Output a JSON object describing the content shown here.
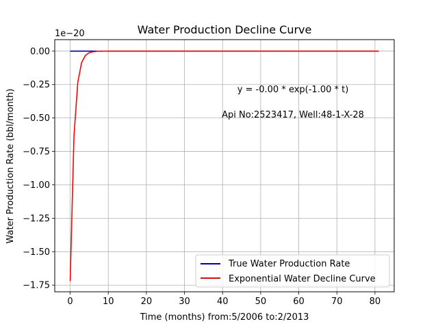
{
  "chart_data": {
    "type": "line",
    "title": "Water Production Decline Curve",
    "xlabel": "Time (months) from:5/2006 to:2/2013",
    "ylabel": "Water Production Rate (bbl/month)",
    "y_offset_label": "1e−20",
    "xlim": [
      -4.05,
      85.05
    ],
    "ylim": [
      -1.8,
      0.086
    ],
    "x_ticks": [
      0,
      10,
      20,
      30,
      40,
      50,
      60,
      70,
      80
    ],
    "x_tick_labels": [
      "0",
      "10",
      "20",
      "30",
      "40",
      "50",
      "60",
      "70",
      "80"
    ],
    "y_ticks": [
      0.0,
      -0.25,
      -0.5,
      -0.75,
      -1.0,
      -1.25,
      -1.5,
      -1.75
    ],
    "y_tick_labels": [
      "0.00",
      "−0.25",
      "−0.50",
      "−0.75",
      "−1.00",
      "−1.25",
      "−1.50",
      "−1.75"
    ],
    "grid": true,
    "legend_position": "lower-right",
    "annotations": [
      "y = -0.00 * exp(-1.00 * t)",
      "Api No:2523417, Well:48-1-X-28"
    ],
    "series": [
      {
        "name": "True Water Production Rate",
        "color": "#0000cc",
        "x": [
          0,
          1,
          2,
          3,
          4,
          5,
          6,
          7
        ],
        "y": [
          0,
          0,
          0,
          0,
          0,
          0,
          0,
          0
        ]
      },
      {
        "name": "Exponential Water Decline Curve",
        "color": "#ff0000",
        "model": {
          "amplitude": -1.72,
          "rate": 1.0,
          "t_start": 0,
          "t_end": 81
        }
      }
    ]
  }
}
